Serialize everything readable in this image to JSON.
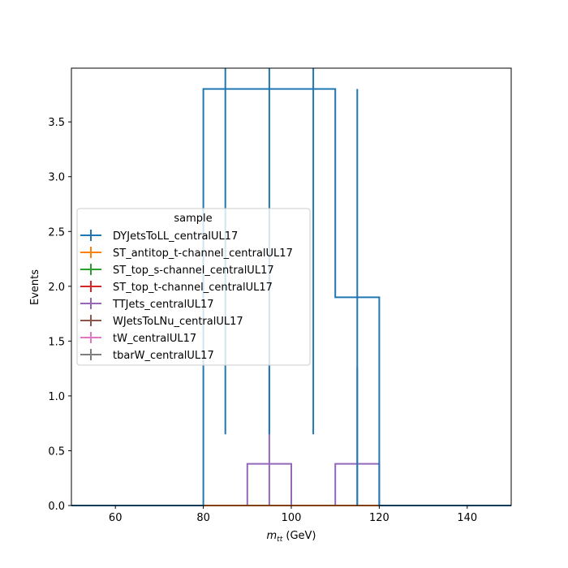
{
  "chart_data": {
    "type": "step",
    "xlabel_var": "m",
    "xlabel_sub": "tt",
    "xlabel_unit": " (GeV)",
    "ylabel": "Events",
    "xlim": [
      50,
      150
    ],
    "ylim": [
      0,
      3.99
    ],
    "xticks": [
      60,
      80,
      100,
      120,
      140
    ],
    "yticks": [
      0.0,
      0.5,
      1.0,
      1.5,
      2.0,
      2.5,
      3.0,
      3.5
    ],
    "legend_title": "sample",
    "legend_placement": "center-left",
    "bin_edges": [
      50,
      60,
      70,
      80,
      90,
      100,
      110,
      120,
      130,
      140,
      150
    ],
    "series": [
      {
        "name": "DYJetsToLL_centralUL17",
        "color": "#1f77b4",
        "values": [
          0,
          0,
          0,
          3.8,
          3.8,
          3.8,
          1.9,
          0,
          0,
          0
        ],
        "errors": [
          0,
          0,
          0,
          3.15,
          3.15,
          3.15,
          1.9,
          0,
          0,
          0
        ]
      },
      {
        "name": "ST_antitop_t-channel_centralUL17",
        "color": "#ff7f0e",
        "values": [
          0,
          0,
          0,
          0,
          0,
          0,
          0,
          0,
          0,
          0
        ],
        "errors": [
          0,
          0,
          0,
          0,
          0,
          0,
          0,
          0,
          0,
          0
        ]
      },
      {
        "name": "ST_top_s-channel_centralUL17",
        "color": "#2ca02c",
        "values": [
          0,
          0,
          0,
          0,
          0,
          0,
          0,
          0,
          0,
          0
        ],
        "errors": [
          0,
          0,
          0,
          0,
          0,
          0,
          0,
          0,
          0,
          0
        ]
      },
      {
        "name": "ST_top_t-channel_centralUL17",
        "color": "#d62728",
        "values": [
          0,
          0,
          0,
          0,
          0,
          0,
          0,
          0,
          0,
          0
        ],
        "errors": [
          0,
          0,
          0,
          0,
          0,
          0,
          0,
          0,
          0,
          0
        ]
      },
      {
        "name": "TTJets_centralUL17",
        "color": "#9467bd",
        "values": [
          0,
          0,
          0,
          0,
          0.38,
          0,
          0.38,
          0,
          0,
          0
        ],
        "errors": [
          0,
          0,
          0,
          0,
          0.88,
          0,
          0.88,
          0,
          0,
          0
        ]
      },
      {
        "name": "WJetsToLNu_centralUL17",
        "color": "#8c564b",
        "values": [
          0,
          0,
          0,
          0,
          0,
          0,
          0,
          0,
          0,
          0
        ],
        "errors": [
          0,
          0,
          0,
          0,
          0,
          0,
          0,
          0,
          0,
          0
        ]
      },
      {
        "name": "tW_centralUL17",
        "color": "#e377c2",
        "values": [
          0,
          0,
          0,
          0,
          0,
          0,
          0,
          0,
          0,
          0
        ],
        "errors": [
          0,
          0,
          0,
          0,
          0,
          0,
          0,
          0,
          0,
          0
        ]
      },
      {
        "name": "tbarW_centralUL17",
        "color": "#7f7f7f",
        "values": [
          0,
          0,
          0,
          0,
          0,
          0,
          0,
          0,
          0,
          0
        ],
        "errors": [
          0,
          0,
          0,
          0,
          0,
          0,
          0,
          0,
          0,
          0
        ]
      }
    ]
  }
}
